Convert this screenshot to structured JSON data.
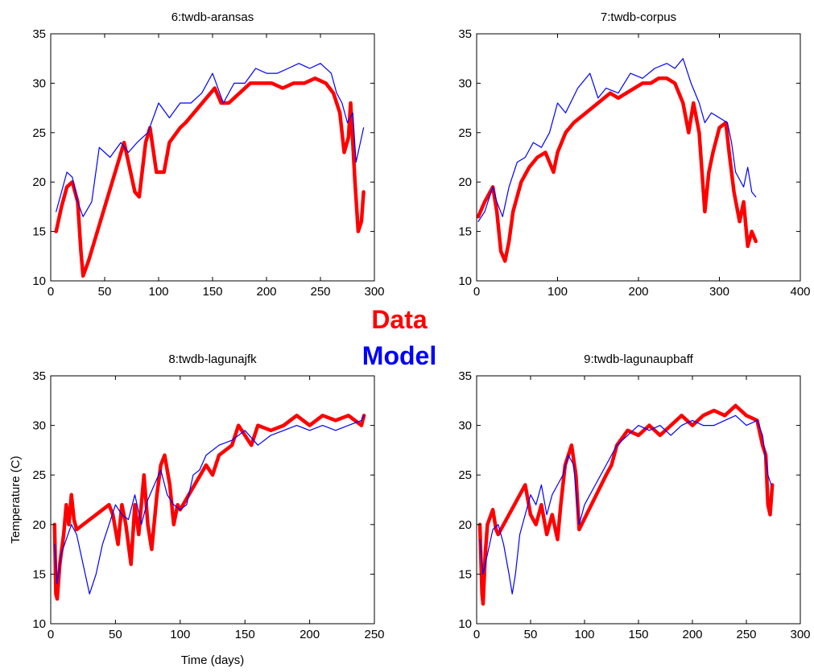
{
  "chart_data": [
    {
      "type": "line",
      "title": "6:twdb-aransas",
      "xlim": [
        0,
        300
      ],
      "xticks": [
        0,
        50,
        100,
        150,
        200,
        250,
        300
      ],
      "ylim": [
        10,
        35
      ],
      "yticks": [
        10,
        15,
        20,
        25,
        30,
        35
      ],
      "series": [
        {
          "name": "Data",
          "color": "#ff0000",
          "x": [
            5,
            10,
            15,
            20,
            25,
            28,
            30,
            35,
            68,
            72,
            78,
            82,
            88,
            92,
            98,
            105,
            110,
            120,
            125,
            152,
            158,
            165,
            175,
            185,
            195,
            205,
            215,
            225,
            235,
            245,
            255,
            262,
            268,
            272,
            276,
            278,
            282,
            285,
            288,
            290
          ],
          "values": [
            15,
            17.5,
            19.5,
            20,
            18,
            13,
            10.5,
            12,
            24,
            22,
            19,
            18.5,
            24,
            25.5,
            21,
            21,
            24,
            25.5,
            26,
            29.5,
            28,
            28,
            29,
            30,
            30,
            30,
            29.5,
            30,
            30,
            30.5,
            30,
            29,
            27,
            23,
            24.5,
            28,
            20,
            15,
            16,
            19
          ]
        },
        {
          "name": "Model",
          "color": "#0000ff",
          "x": [
            5,
            10,
            15,
            20,
            25,
            30,
            38,
            45,
            55,
            65,
            72,
            80,
            90,
            100,
            110,
            120,
            130,
            140,
            150,
            160,
            170,
            180,
            190,
            200,
            210,
            220,
            230,
            240,
            250,
            260,
            265,
            270,
            275,
            280,
            283,
            290
          ],
          "values": [
            17,
            19,
            21,
            20.5,
            18,
            16.5,
            18,
            23.5,
            22.5,
            24,
            23,
            24,
            25,
            28,
            26.5,
            28,
            28,
            29,
            31,
            28,
            30,
            30,
            31.5,
            31,
            31,
            31.5,
            32,
            31.5,
            32,
            31,
            29,
            28,
            26,
            27,
            22,
            25.5
          ]
        }
      ]
    },
    {
      "type": "line",
      "title": "7:twdb-corpus",
      "xlim": [
        0,
        400
      ],
      "xticks": [
        0,
        100,
        200,
        300,
        400
      ],
      "ylim": [
        10,
        35
      ],
      "yticks": [
        10,
        15,
        20,
        25,
        30,
        35
      ],
      "series": [
        {
          "color": "#ff0000",
          "x": [
            2,
            10,
            20,
            25,
            30,
            35,
            40,
            45,
            55,
            65,
            75,
            85,
            95,
            100,
            110,
            120,
            135,
            150,
            165,
            175,
            205,
            215,
            225,
            235,
            245,
            255,
            262,
            268,
            275,
            282,
            287,
            292,
            300,
            308,
            312,
            318,
            325,
            330,
            335,
            340,
            345
          ],
          "values": [
            16.5,
            18,
            19.5,
            17,
            13,
            12,
            14,
            17,
            20,
            21.5,
            22.5,
            23,
            21,
            23,
            25,
            26,
            27,
            28,
            29,
            28.5,
            30,
            30,
            30.5,
            30.5,
            30,
            28,
            25,
            28,
            25,
            17,
            21,
            23,
            25.5,
            26,
            23,
            19,
            16,
            18,
            13.5,
            15,
            14
          ]
        },
        {
          "color": "#0000ff",
          "x": [
            2,
            10,
            20,
            25,
            32,
            40,
            50,
            60,
            70,
            80,
            90,
            100,
            110,
            125,
            140,
            150,
            160,
            175,
            190,
            205,
            220,
            235,
            245,
            255,
            265,
            275,
            282,
            290,
            300,
            310,
            315,
            320,
            330,
            335,
            340,
            345
          ],
          "values": [
            16,
            17,
            19.5,
            18,
            16.5,
            19.5,
            22,
            22.5,
            24,
            23.5,
            25,
            28,
            27,
            29.5,
            31,
            28.5,
            29.5,
            29,
            31,
            30.5,
            31.5,
            32,
            31.5,
            32.5,
            30,
            28,
            26,
            27,
            26.5,
            26,
            24,
            21,
            19.5,
            21.5,
            19,
            18.5
          ]
        }
      ]
    },
    {
      "type": "line",
      "title": "8:twdb-lagunajfk",
      "xlabel": "Time (days)",
      "ylabel": "Temperature (C)",
      "xlim": [
        0,
        250
      ],
      "xticks": [
        0,
        50,
        100,
        150,
        200,
        250
      ],
      "ylim": [
        10,
        35
      ],
      "yticks": [
        10,
        15,
        20,
        25,
        30,
        35
      ],
      "series": [
        {
          "color": "#ff0000",
          "x": [
            3,
            4,
            5,
            7,
            10,
            12,
            14,
            16,
            18,
            20,
            45,
            48,
            52,
            55,
            58,
            62,
            65,
            68,
            72,
            75,
            78,
            82,
            85,
            88,
            92,
            95,
            98,
            100,
            120,
            125,
            130,
            135,
            140,
            145,
            150,
            155,
            160,
            170,
            180,
            190,
            200,
            210,
            220,
            230,
            240,
            242
          ],
          "values": [
            20,
            13,
            12.5,
            16,
            19,
            22,
            20,
            23,
            20.5,
            19.5,
            22,
            21,
            18,
            22,
            20,
            16,
            22,
            19,
            25,
            20,
            17.5,
            23,
            26,
            27,
            24,
            20,
            22,
            21.5,
            26,
            25,
            27,
            27.5,
            28,
            30,
            29,
            28,
            30,
            29.5,
            30,
            31,
            30,
            31,
            30.5,
            31,
            30,
            31
          ]
        },
        {
          "color": "#0000ff",
          "x": [
            3,
            5,
            8,
            12,
            16,
            20,
            25,
            30,
            35,
            40,
            45,
            50,
            55,
            60,
            65,
            70,
            75,
            80,
            85,
            90,
            95,
            100,
            105,
            110,
            115,
            120,
            130,
            140,
            150,
            160,
            170,
            180,
            190,
            200,
            210,
            220,
            230,
            240,
            242
          ],
          "values": [
            18,
            14,
            17,
            18.5,
            20,
            19,
            16,
            13,
            15,
            18,
            20,
            22,
            21,
            20.5,
            23,
            20,
            22.5,
            24,
            25.5,
            23,
            22,
            21.5,
            22,
            25,
            25.5,
            27,
            28,
            28.5,
            29.5,
            28,
            29,
            29.5,
            30,
            29.5,
            30,
            29.5,
            30,
            30.5,
            31
          ]
        }
      ]
    },
    {
      "type": "line",
      "title": "9:twdb-lagunaupbaff",
      "xlim": [
        0,
        300
      ],
      "xticks": [
        0,
        50,
        100,
        150,
        200,
        250,
        300
      ],
      "ylim": [
        10,
        35
      ],
      "yticks": [
        10,
        15,
        20,
        25,
        30,
        35
      ],
      "series": [
        {
          "color": "#ff0000",
          "x": [
            3,
            5,
            6,
            8,
            10,
            15,
            18,
            20,
            45,
            50,
            55,
            60,
            65,
            70,
            75,
            78,
            82,
            88,
            92,
            95,
            120,
            125,
            130,
            140,
            150,
            160,
            170,
            180,
            190,
            200,
            210,
            220,
            230,
            240,
            250,
            260,
            265,
            268,
            270,
            272,
            274
          ],
          "values": [
            20,
            13,
            12,
            17,
            20,
            21.5,
            19.5,
            19,
            24,
            21,
            20,
            22,
            19,
            21,
            18.5,
            22,
            26,
            28,
            25,
            19.5,
            25,
            26,
            28,
            29.5,
            29,
            30,
            29,
            30,
            31,
            30,
            31,
            31.5,
            31,
            32,
            31,
            30.5,
            28,
            27,
            22,
            21,
            24
          ]
        },
        {
          "color": "#0000ff",
          "x": [
            3,
            6,
            10,
            15,
            20,
            25,
            30,
            33,
            36,
            40,
            45,
            50,
            55,
            60,
            65,
            70,
            75,
            80,
            85,
            90,
            95,
            100,
            105,
            110,
            115,
            120,
            130,
            140,
            150,
            160,
            170,
            180,
            190,
            200,
            210,
            220,
            230,
            240,
            250,
            260,
            265,
            270,
            273
          ],
          "values": [
            18.5,
            15,
            17,
            19.5,
            20,
            18,
            15,
            13,
            15,
            19,
            21,
            23,
            22,
            24,
            21,
            23,
            24,
            25,
            27,
            26,
            20,
            22,
            23,
            24,
            25,
            26,
            28,
            29,
            30,
            29.5,
            30,
            29,
            30,
            30.5,
            30,
            30,
            30.5,
            31,
            30,
            30.5,
            29,
            25,
            24
          ]
        }
      ]
    }
  ]
}
